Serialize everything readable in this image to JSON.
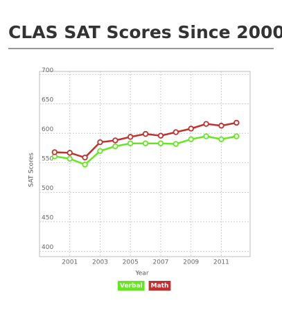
{
  "chart_data": {
    "type": "line",
    "title": "CLAS SAT Scores Since 2000",
    "x": [
      2000,
      2001,
      2002,
      2003,
      2004,
      2005,
      2006,
      2007,
      2008,
      2009,
      2010,
      2011,
      2012
    ],
    "series": [
      {
        "name": "Verbal",
        "color": "#66e622",
        "values": [
          561,
          557,
          547,
          570,
          578,
          583,
          583,
          583,
          582,
          590,
          595,
          590,
          595
        ]
      },
      {
        "name": "Math",
        "color": "#c0302f",
        "values": [
          568,
          567,
          559,
          585,
          588,
          594,
          599,
          596,
          602,
          608,
          616,
          613,
          618
        ]
      }
    ],
    "xlabel": "Year",
    "ylabel": "SAT Scores",
    "xlim": [
      1999,
      2012.9
    ],
    "xticks": [
      2001,
      2003,
      2005,
      2007,
      2009,
      2011
    ],
    "ylim": [
      391,
      705
    ],
    "yticks": [
      400,
      450,
      500,
      550,
      600,
      650,
      700
    ],
    "grid": true,
    "legend": "bottom"
  }
}
